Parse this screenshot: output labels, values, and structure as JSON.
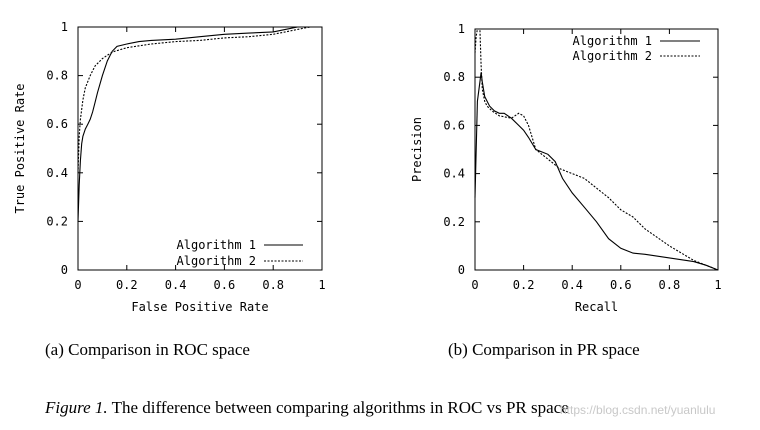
{
  "chart_data": [
    {
      "type": "line",
      "title": "",
      "xlabel": "False Positive Rate",
      "ylabel": "True Positive Rate",
      "xlim": [
        0,
        1
      ],
      "ylim": [
        0,
        1
      ],
      "xticks": [
        "0",
        "0.2",
        "0.4",
        "0.6",
        "0.8",
        "1"
      ],
      "yticks": [
        "0",
        "0.2",
        "0.4",
        "0.6",
        "0.8",
        "1"
      ],
      "legend_position": "bottom-right",
      "series": [
        {
          "name": "Algorithm 1",
          "style": "solid",
          "points": [
            [
              0,
              0.2
            ],
            [
              0.005,
              0.35
            ],
            [
              0.01,
              0.45
            ],
            [
              0.015,
              0.52
            ],
            [
              0.02,
              0.55
            ],
            [
              0.03,
              0.58
            ],
            [
              0.04,
              0.6
            ],
            [
              0.05,
              0.62
            ],
            [
              0.06,
              0.65
            ],
            [
              0.07,
              0.69
            ],
            [
              0.08,
              0.73
            ],
            [
              0.1,
              0.8
            ],
            [
              0.12,
              0.86
            ],
            [
              0.14,
              0.9
            ],
            [
              0.16,
              0.92
            ],
            [
              0.2,
              0.93
            ],
            [
              0.25,
              0.94
            ],
            [
              0.3,
              0.945
            ],
            [
              0.4,
              0.95
            ],
            [
              0.5,
              0.96
            ],
            [
              0.6,
              0.97
            ],
            [
              0.7,
              0.975
            ],
            [
              0.8,
              0.98
            ],
            [
              0.85,
              0.99
            ],
            [
              0.9,
              1
            ],
            [
              1,
              1
            ]
          ]
        },
        {
          "name": "Algorithm 2",
          "style": "dashed",
          "points": [
            [
              0,
              0.4
            ],
            [
              0.005,
              0.55
            ],
            [
              0.01,
              0.62
            ],
            [
              0.02,
              0.7
            ],
            [
              0.03,
              0.75
            ],
            [
              0.05,
              0.8
            ],
            [
              0.07,
              0.84
            ],
            [
              0.1,
              0.87
            ],
            [
              0.13,
              0.89
            ],
            [
              0.15,
              0.9
            ],
            [
              0.2,
              0.915
            ],
            [
              0.3,
              0.93
            ],
            [
              0.4,
              0.94
            ],
            [
              0.5,
              0.945
            ],
            [
              0.6,
              0.955
            ],
            [
              0.7,
              0.96
            ],
            [
              0.8,
              0.97
            ],
            [
              0.85,
              0.98
            ],
            [
              0.9,
              0.99
            ],
            [
              0.95,
              1
            ],
            [
              1,
              1
            ]
          ]
        }
      ]
    },
    {
      "type": "line",
      "title": "",
      "xlabel": "Recall",
      "ylabel": "Precision",
      "xlim": [
        0,
        1
      ],
      "ylim": [
        0,
        1
      ],
      "xticks": [
        "0",
        "0.2",
        "0.4",
        "0.6",
        "0.8",
        "1"
      ],
      "yticks": [
        "0",
        "0.2",
        "0.4",
        "0.6",
        "0.8",
        "1"
      ],
      "legend_position": "top-right",
      "series": [
        {
          "name": "Algorithm 1",
          "style": "solid",
          "points": [
            [
              0,
              0.3
            ],
            [
              0.005,
              0.5
            ],
            [
              0.01,
              0.7
            ],
            [
              0.02,
              0.78
            ],
            [
              0.025,
              0.82
            ],
            [
              0.03,
              0.78
            ],
            [
              0.04,
              0.72
            ],
            [
              0.05,
              0.7
            ],
            [
              0.06,
              0.68
            ],
            [
              0.08,
              0.66
            ],
            [
              0.1,
              0.65
            ],
            [
              0.12,
              0.65
            ],
            [
              0.15,
              0.63
            ],
            [
              0.18,
              0.6
            ],
            [
              0.2,
              0.58
            ],
            [
              0.22,
              0.55
            ],
            [
              0.25,
              0.5
            ],
            [
              0.3,
              0.48
            ],
            [
              0.33,
              0.45
            ],
            [
              0.36,
              0.38
            ],
            [
              0.4,
              0.32
            ],
            [
              0.45,
              0.26
            ],
            [
              0.5,
              0.2
            ],
            [
              0.55,
              0.13
            ],
            [
              0.6,
              0.09
            ],
            [
              0.65,
              0.07
            ],
            [
              0.7,
              0.065
            ],
            [
              0.8,
              0.05
            ],
            [
              0.9,
              0.035
            ],
            [
              0.95,
              0.02
            ],
            [
              1,
              0
            ]
          ]
        },
        {
          "name": "Algorithm 2",
          "style": "dashed",
          "points": [
            [
              0,
              0.9
            ],
            [
              0.005,
              0.97
            ],
            [
              0.01,
              1
            ],
            [
              0.02,
              1
            ],
            [
              0.025,
              0.85
            ],
            [
              0.03,
              0.75
            ],
            [
              0.04,
              0.7
            ],
            [
              0.05,
              0.68
            ],
            [
              0.07,
              0.66
            ],
            [
              0.1,
              0.64
            ],
            [
              0.15,
              0.63
            ],
            [
              0.18,
              0.65
            ],
            [
              0.2,
              0.64
            ],
            [
              0.22,
              0.6
            ],
            [
              0.25,
              0.5
            ],
            [
              0.3,
              0.46
            ],
            [
              0.35,
              0.42
            ],
            [
              0.4,
              0.4
            ],
            [
              0.45,
              0.38
            ],
            [
              0.5,
              0.34
            ],
            [
              0.55,
              0.3
            ],
            [
              0.6,
              0.25
            ],
            [
              0.65,
              0.22
            ],
            [
              0.7,
              0.17
            ],
            [
              0.8,
              0.1
            ],
            [
              0.9,
              0.04
            ],
            [
              0.95,
              0.02
            ],
            [
              1,
              0
            ]
          ]
        }
      ]
    }
  ],
  "captions": {
    "roc": "(a) Comparison in ROC space",
    "pr": "(b) Comparison in PR space",
    "figure_label": "Figure 1.",
    "figure_text": "The difference between comparing algorithms in ROC vs PR space"
  },
  "watermark": "https://blog.csdn.net/yuanlulu"
}
